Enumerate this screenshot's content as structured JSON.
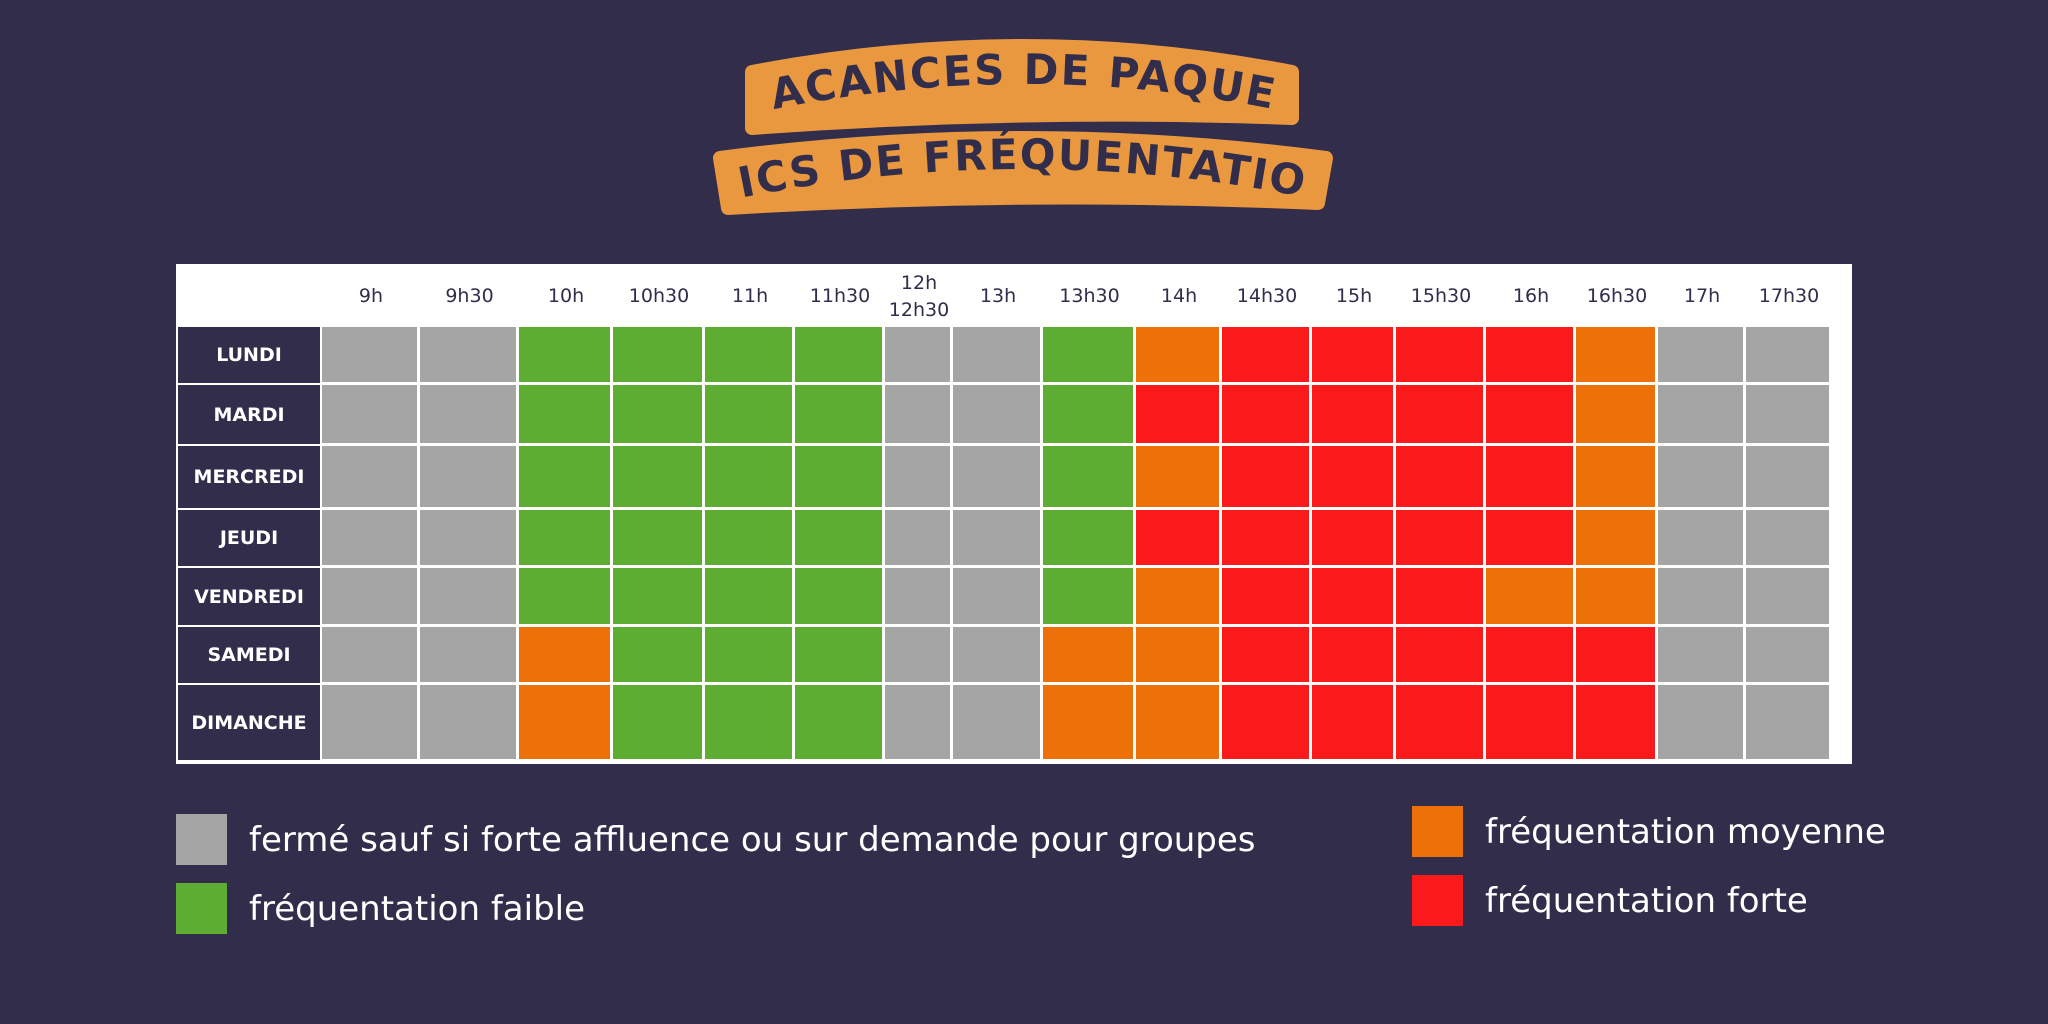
{
  "title": {
    "line1": "VACANCES DE PAQUES",
    "line2": "PICS DE FRÉQUENTATION"
  },
  "colors": {
    "background": "#312d4b",
    "banner": "#e9983f",
    "ferme": "#a5a5a5",
    "faible": "#5cad31",
    "moyenne": "#ec7108",
    "forte": "#fb1a1b"
  },
  "chart_data": {
    "type": "heatmap",
    "x": [
      "9h",
      "9h30",
      "10h",
      "10h30",
      "11h",
      "11h30",
      "12h\n12h30",
      "13h",
      "13h30",
      "14h",
      "14h30",
      "15h",
      "15h30",
      "16h",
      "16h30",
      "17h",
      "17h30"
    ],
    "y": [
      "LUNDI",
      "MARDI",
      "MERCREDI",
      "JEUDI",
      "VENDREDI",
      "SAMEDI",
      "DIMANCHE"
    ],
    "levels": [
      "ferme",
      "faible",
      "moyenne",
      "forte"
    ],
    "values": [
      [
        "ferme",
        "ferme",
        "faible",
        "faible",
        "faible",
        "faible",
        "ferme",
        "ferme",
        "faible",
        "moyenne",
        "forte",
        "forte",
        "forte",
        "forte",
        "moyenne",
        "ferme",
        "ferme"
      ],
      [
        "ferme",
        "ferme",
        "faible",
        "faible",
        "faible",
        "faible",
        "ferme",
        "ferme",
        "faible",
        "forte",
        "forte",
        "forte",
        "forte",
        "forte",
        "moyenne",
        "ferme",
        "ferme"
      ],
      [
        "ferme",
        "ferme",
        "faible",
        "faible",
        "faible",
        "faible",
        "ferme",
        "ferme",
        "faible",
        "moyenne",
        "forte",
        "forte",
        "forte",
        "forte",
        "moyenne",
        "ferme",
        "ferme"
      ],
      [
        "ferme",
        "ferme",
        "faible",
        "faible",
        "faible",
        "faible",
        "ferme",
        "ferme",
        "faible",
        "forte",
        "forte",
        "forte",
        "forte",
        "forte",
        "moyenne",
        "ferme",
        "ferme"
      ],
      [
        "ferme",
        "ferme",
        "faible",
        "faible",
        "faible",
        "faible",
        "ferme",
        "ferme",
        "faible",
        "moyenne",
        "forte",
        "forte",
        "forte",
        "moyenne",
        "moyenne",
        "ferme",
        "ferme"
      ],
      [
        "ferme",
        "ferme",
        "moyenne",
        "faible",
        "faible",
        "faible",
        "ferme",
        "ferme",
        "moyenne",
        "moyenne",
        "forte",
        "forte",
        "forte",
        "forte",
        "forte",
        "ferme",
        "ferme"
      ],
      [
        "ferme",
        "ferme",
        "moyenne",
        "faible",
        "faible",
        "faible",
        "ferme",
        "ferme",
        "moyenne",
        "moyenne",
        "forte",
        "forte",
        "forte",
        "forte",
        "forte",
        "ferme",
        "ferme"
      ]
    ]
  },
  "legend": {
    "ferme": "fermé sauf si forte affluence ou sur demande pour groupes",
    "faible": "fréquentation faible",
    "moyenne": "fréquentation moyenne",
    "forte": "fréquentation forte"
  }
}
